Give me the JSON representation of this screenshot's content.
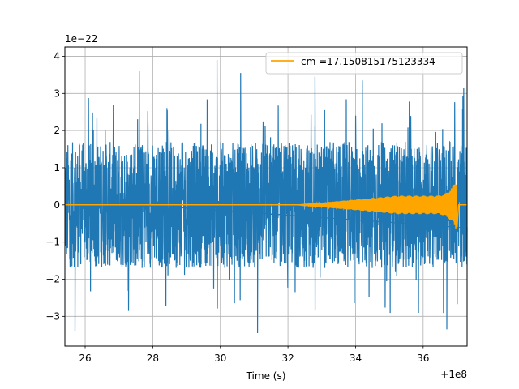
{
  "chart_data": {
    "type": "line",
    "title": "",
    "xlabel": "Time (s)",
    "ylabel": "",
    "x_offset_label": "+1e8",
    "y_scale_label": "1e−22",
    "xlim": [
      25.4,
      37.3
    ],
    "ylim": [
      -3.8,
      4.25
    ],
    "grid": true,
    "legend_position": "top-right",
    "x_ticks": [
      26,
      28,
      30,
      32,
      34,
      36
    ],
    "y_ticks": [
      -3,
      -2,
      -1,
      0,
      1,
      2,
      3,
      4
    ],
    "series": [
      {
        "name": "",
        "color": "#1f77b4",
        "kind": "noise",
        "typical_amplitude": 1.7,
        "peak_max": 3.9,
        "peak_min": -3.45,
        "peaks": [
          {
            "x": 27.6,
            "y": 3.6
          },
          {
            "x": 29.9,
            "y": 3.9
          },
          {
            "x": 30.6,
            "y": 3.55
          },
          {
            "x": 32.8,
            "y": 3.45
          },
          {
            "x": 34.2,
            "y": 3.35
          },
          {
            "x": 37.2,
            "y": 3.15
          },
          {
            "x": 25.7,
            "y": -3.4
          },
          {
            "x": 31.1,
            "y": -3.45
          },
          {
            "x": 36.7,
            "y": -3.35
          }
        ]
      },
      {
        "name": "cm =17.150815175123334",
        "color": "#ffa500",
        "kind": "chirp",
        "start_x": 32.3,
        "merger_x": 37.0,
        "pre_merger_amplitude": 0.25,
        "peak_amplitude": 0.7,
        "min_amplitude": -0.63
      }
    ]
  }
}
